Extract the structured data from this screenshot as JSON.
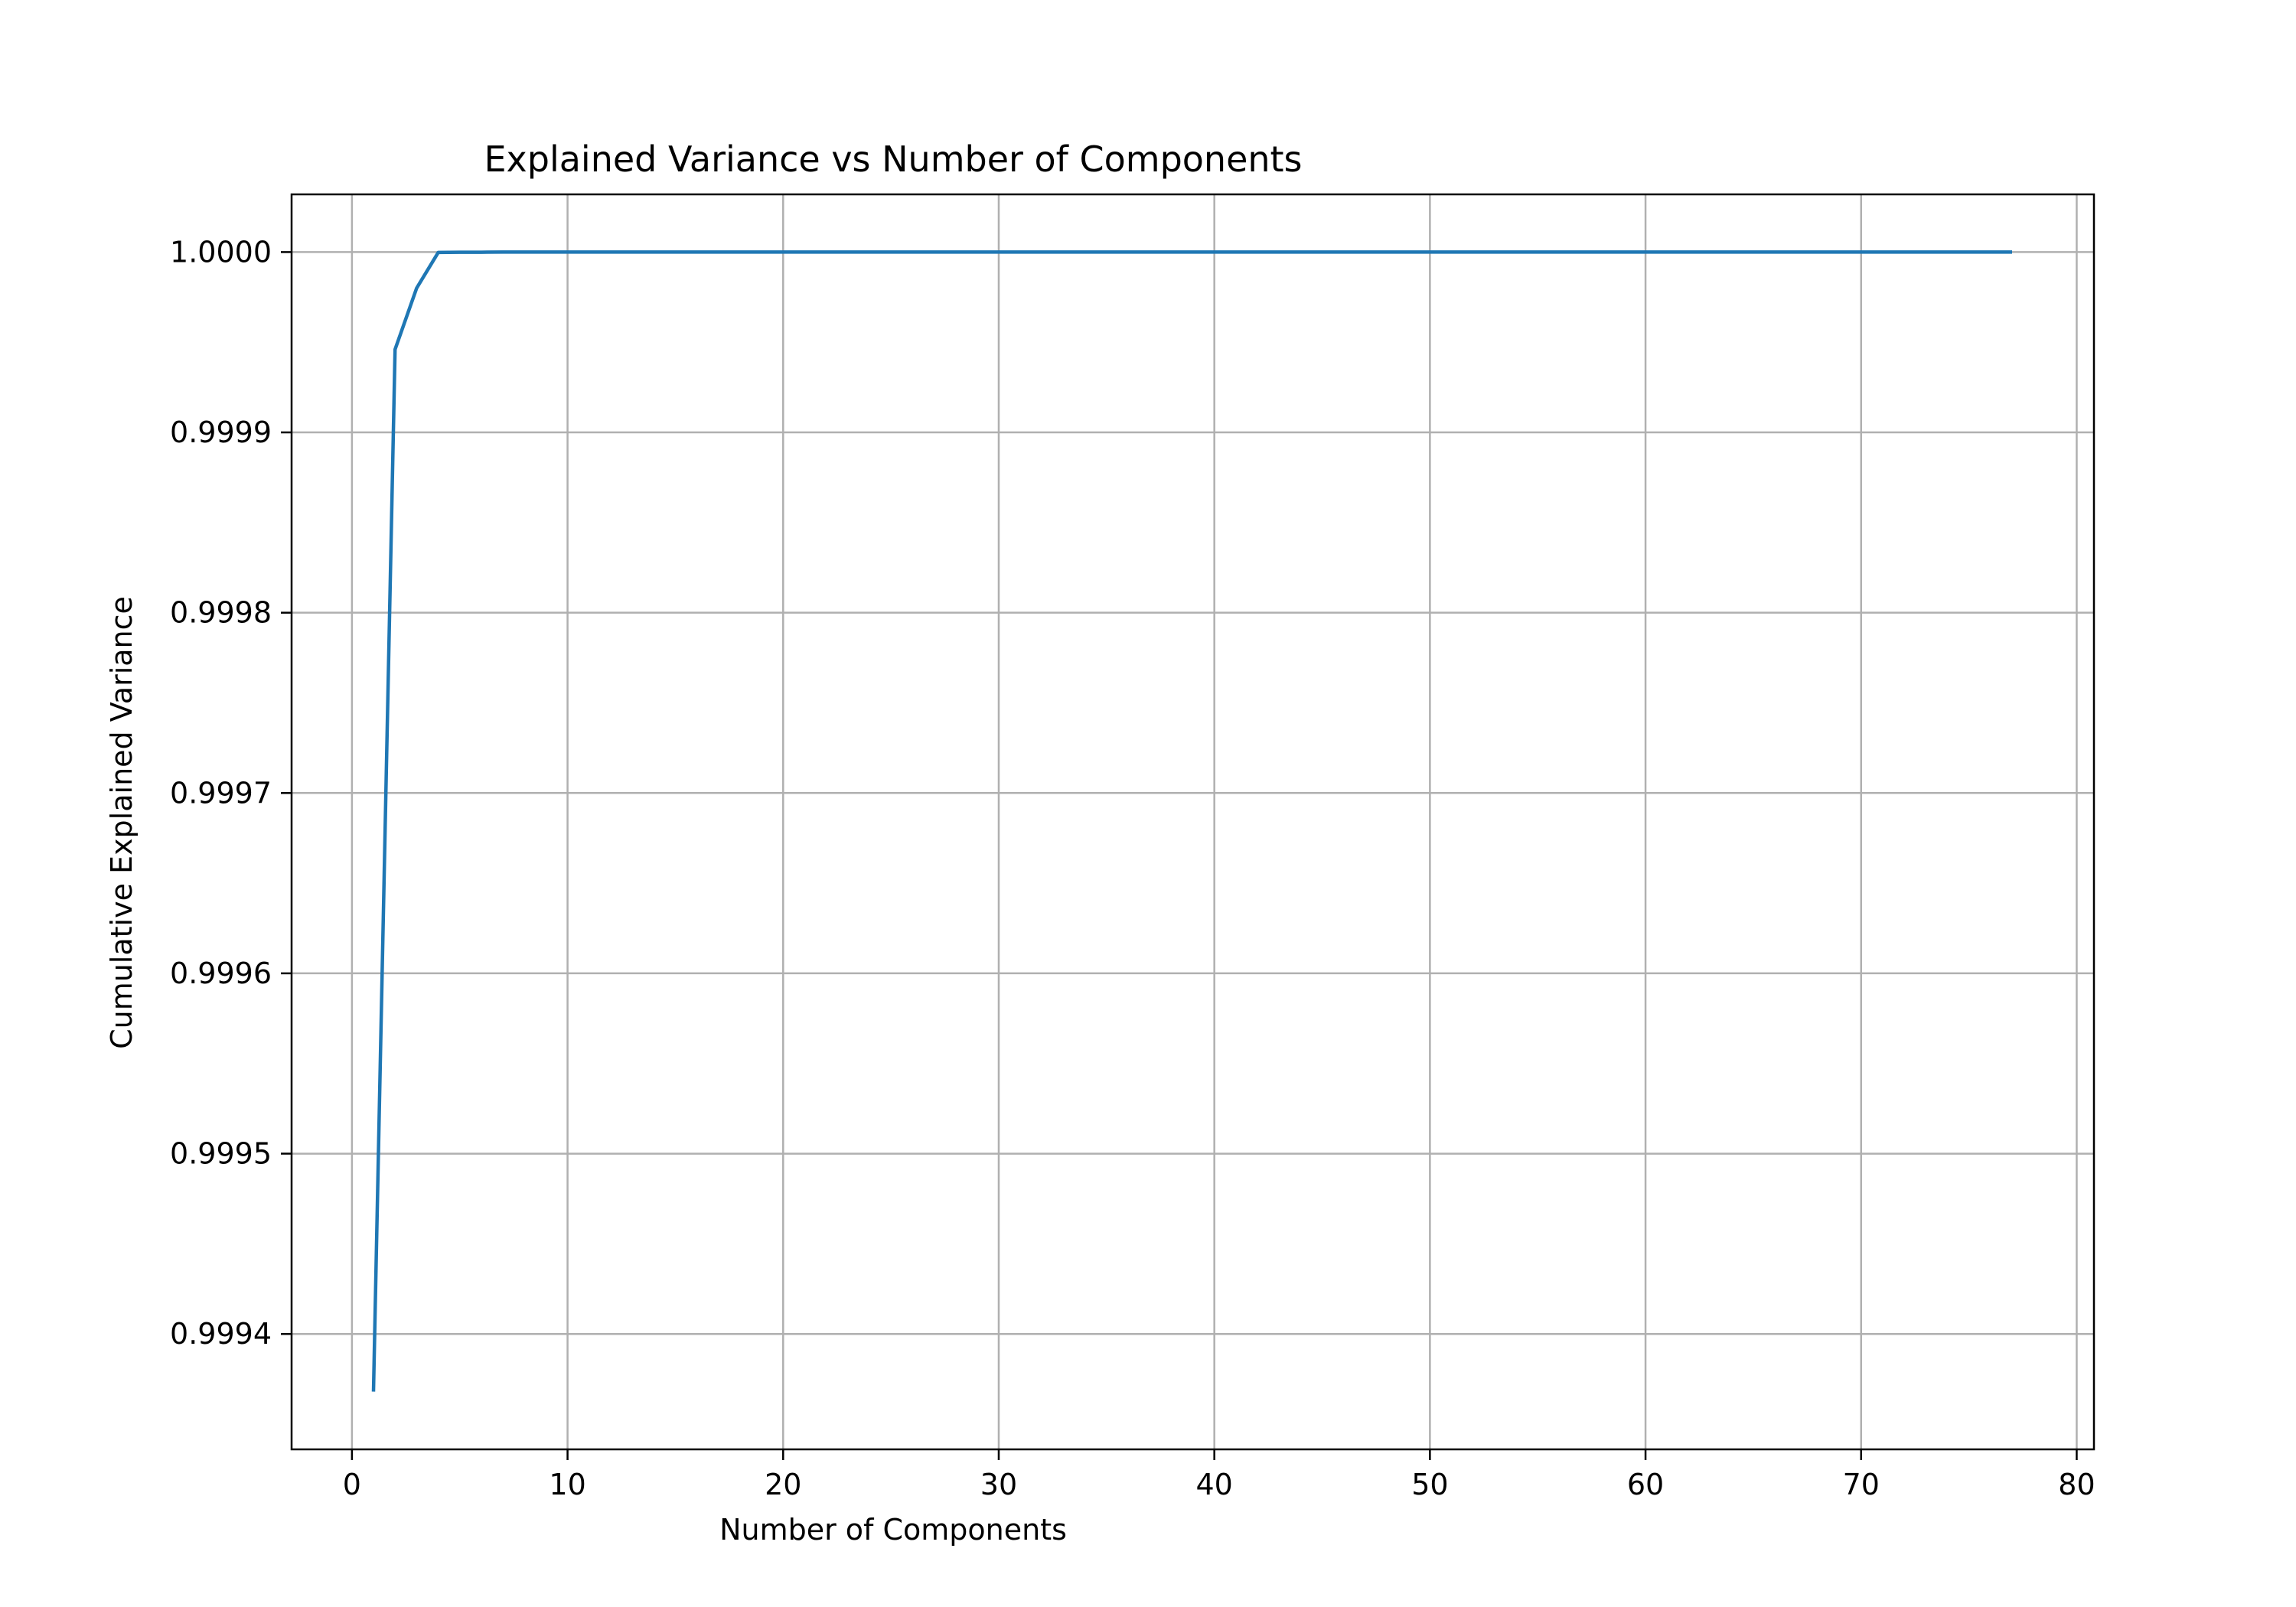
{
  "chart_data": {
    "type": "line",
    "title": "Explained Variance vs Number of Components",
    "xlabel": "Number of Components",
    "ylabel": "Cumulative Explained Variance",
    "xlim": [
      -2.8,
      80.8
    ],
    "ylim": [
      0.999336,
      1.000032
    ],
    "x_ticks": [
      0,
      10,
      20,
      30,
      40,
      50,
      60,
      70,
      80
    ],
    "x_tick_labels": [
      "0",
      "10",
      "20",
      "30",
      "40",
      "50",
      "60",
      "70",
      "80"
    ],
    "y_ticks": [
      0.9994,
      0.9995,
      0.9996,
      0.9997,
      0.9998,
      0.9999,
      1.0
    ],
    "y_tick_labels": [
      "0.9994",
      "0.9995",
      "0.9996",
      "0.9997",
      "0.9998",
      "0.9999",
      "1.0000"
    ],
    "grid": true,
    "colors": {
      "series": "#1f77b4",
      "grid": "#b0b0b0",
      "frame": "#000000"
    },
    "series": [
      {
        "x": [
          1,
          2,
          3,
          4,
          5,
          6,
          7,
          8,
          9,
          10,
          11,
          12,
          13,
          14,
          15,
          16,
          17,
          18,
          19,
          20,
          21,
          22,
          23,
          24,
          25,
          26,
          27,
          28,
          29,
          30,
          31,
          32,
          33,
          34,
          35,
          36,
          37,
          38,
          39,
          40,
          41,
          42,
          43,
          44,
          45,
          46,
          47,
          48,
          49,
          50,
          51,
          52,
          53,
          54,
          55,
          56,
          57,
          58,
          59,
          60,
          61,
          62,
          63,
          64,
          65,
          66,
          67,
          68,
          69,
          70,
          71,
          72,
          73,
          74,
          75,
          76,
          77
        ],
        "y": [
          0.999368,
          0.999946,
          0.99998,
          0.9999998,
          0.9999999,
          0.9999999,
          1.0,
          1.0,
          1.0,
          1.0,
          1.0,
          1.0,
          1.0,
          1.0,
          1.0,
          1.0,
          1.0,
          1.0,
          1.0,
          1.0,
          1.0,
          1.0,
          1.0,
          1.0,
          1.0,
          1.0,
          1.0,
          1.0,
          1.0,
          1.0,
          1.0,
          1.0,
          1.0,
          1.0,
          1.0,
          1.0,
          1.0,
          1.0,
          1.0,
          1.0,
          1.0,
          1.0,
          1.0,
          1.0,
          1.0,
          1.0,
          1.0,
          1.0,
          1.0,
          1.0,
          1.0,
          1.0,
          1.0,
          1.0,
          1.0,
          1.0,
          1.0,
          1.0,
          1.0,
          1.0,
          1.0,
          1.0,
          1.0,
          1.0,
          1.0,
          1.0,
          1.0,
          1.0,
          1.0,
          1.0,
          1.0,
          1.0,
          1.0,
          1.0,
          1.0,
          1.0,
          1.0
        ]
      }
    ]
  }
}
